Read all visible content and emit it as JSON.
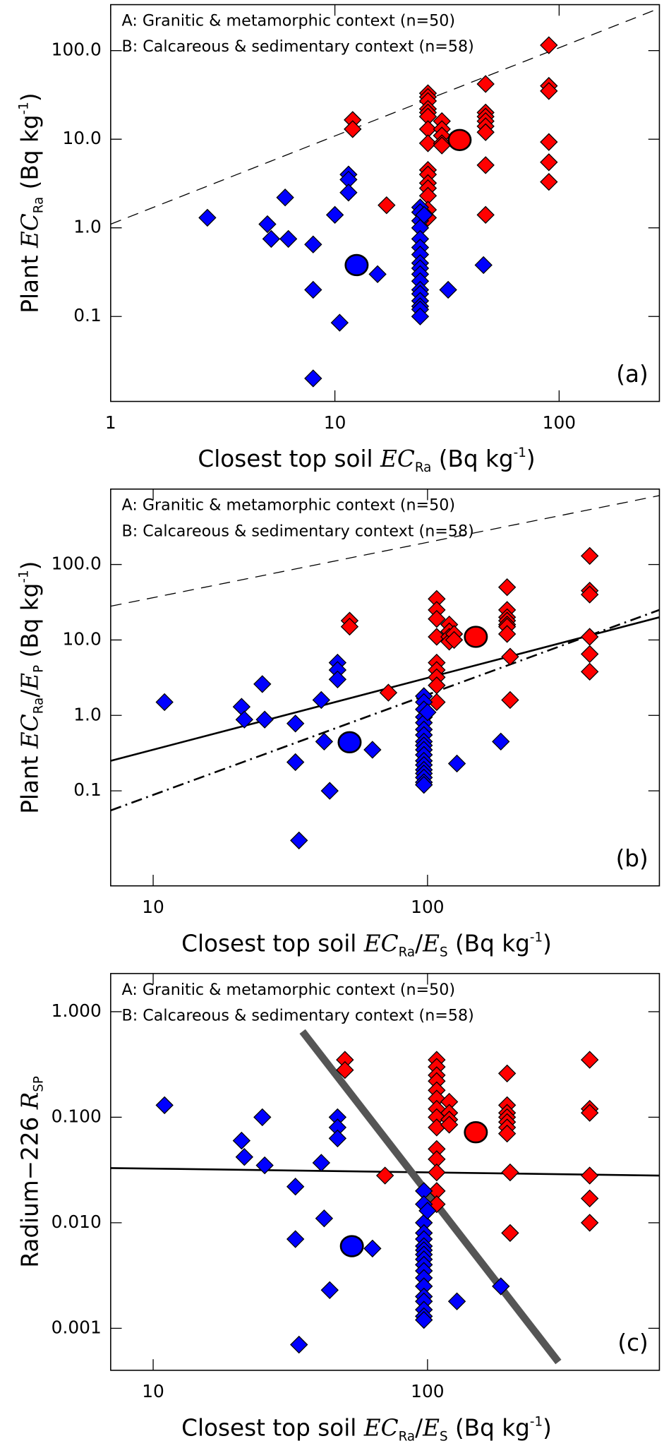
{
  "chart_data": [
    {
      "type": "scatter",
      "panel_label": "(a)",
      "xscale": "log",
      "yscale": "log",
      "xlim": [
        1,
        280
      ],
      "ylim": [
        0.011,
        330
      ],
      "xticks": [
        1,
        10,
        100
      ],
      "yticks": [
        0.1,
        {
          "value": 1,
          "label": "1.0"
        },
        {
          "value": 10,
          "label": "10.0"
        },
        {
          "value": 100,
          "label": "100.0"
        }
      ],
      "xlabel": [
        {
          "text": "Closest top soil ",
          "style": "normal"
        },
        {
          "text": "EC",
          "style": "italic"
        },
        {
          "text": "Ra",
          "style": "sub"
        },
        {
          "text": " (Bq kg",
          "style": "normal"
        },
        {
          "text": "-1",
          "style": "sup"
        },
        {
          "text": ")",
          "style": "normal"
        }
      ],
      "ylabel": [
        {
          "text": "Plant ",
          "style": "normal"
        },
        {
          "text": "EC",
          "style": "italic"
        },
        {
          "text": "Ra",
          "style": "sub"
        },
        {
          "text": " (Bq kg",
          "style": "normal"
        },
        {
          "text": "-1",
          "style": "sup"
        },
        {
          "text": ")",
          "style": "normal"
        }
      ],
      "series": [
        {
          "name": "A: Granitic & metamorphic context (n=50)",
          "color": "#ff0000",
          "x": [
            12,
            12,
            17,
            26,
            26,
            26,
            26,
            26,
            26,
            26,
            26,
            26,
            26,
            26,
            26,
            26,
            26,
            26,
            30,
            30,
            30,
            30,
            30,
            47,
            47,
            47,
            47,
            47,
            47,
            47,
            47,
            90,
            90,
            90,
            90,
            90,
            90
          ],
          "values": [
            16.5,
            13,
            1.8,
            33,
            30,
            27,
            22,
            20,
            18,
            13,
            9,
            4.5,
            4,
            3.2,
            2.8,
            2.3,
            1.6,
            1.3,
            16,
            13,
            11,
            9,
            8.5,
            42,
            20,
            18,
            16,
            14,
            12,
            5.1,
            1.4,
            115,
            40,
            35,
            9.3,
            5.5,
            3.3
          ]
        },
        {
          "name": "B: Calcareous & sedimentary context (n=58)",
          "color": "#0000ff",
          "x": [
            2.7,
            5,
            5.2,
            6,
            6.2,
            8,
            8,
            8,
            10,
            10.5,
            11.5,
            11.5,
            11.5,
            15.5,
            24,
            24,
            24,
            24,
            24,
            24,
            24,
            24,
            24,
            24,
            24,
            24,
            24,
            24,
            24,
            24,
            24,
            25,
            32,
            46
          ],
          "values": [
            1.3,
            1.1,
            0.75,
            2.2,
            0.75,
            0.65,
            0.2,
            0.02,
            1.4,
            0.085,
            4,
            3.5,
            2.5,
            0.3,
            1.7,
            1.5,
            1.2,
            1.0,
            0.75,
            0.6,
            0.5,
            0.4,
            0.35,
            0.3,
            0.25,
            0.2,
            0.18,
            0.15,
            0.13,
            0.12,
            0.1,
            1.4,
            0.2,
            0.38
          ]
        }
      ],
      "means": [
        {
          "x": 36,
          "y": 9.8,
          "color": "#ff0000"
        },
        {
          "x": 12.5,
          "y": 0.38,
          "color": "#0000ff"
        }
      ],
      "lines": [
        {
          "x": [
            1,
            280
          ],
          "values": [
            1.1,
            300
          ],
          "style": "dashed",
          "color": "#000000",
          "width": 1
        }
      ]
    },
    {
      "type": "scatter",
      "panel_label": "(b)",
      "xscale": "log",
      "yscale": "log",
      "xlim": [
        7,
        700
      ],
      "ylim": [
        0.0055,
        1000
      ],
      "xticks": [
        10,
        100
      ],
      "yticks": [
        0.1,
        {
          "value": 1,
          "label": "1.0"
        },
        {
          "value": 10,
          "label": "10.0"
        },
        {
          "value": 100,
          "label": "100.0"
        }
      ],
      "xlabel": [
        {
          "text": "Closest top soil ",
          "style": "normal"
        },
        {
          "text": "EC",
          "style": "italic"
        },
        {
          "text": "Ra",
          "style": "sub"
        },
        {
          "text": "/",
          "style": "normal"
        },
        {
          "text": "E",
          "style": "italic"
        },
        {
          "text": "S",
          "style": "sub"
        },
        {
          "text": " (Bq kg",
          "style": "normal"
        },
        {
          "text": "-1",
          "style": "sup"
        },
        {
          "text": ")",
          "style": "normal"
        }
      ],
      "ylabel": [
        {
          "text": "Plant ",
          "style": "normal"
        },
        {
          "text": "EC",
          "style": "italic"
        },
        {
          "text": "Ra",
          "style": "sub"
        },
        {
          "text": "/",
          "style": "normal"
        },
        {
          "text": "E",
          "style": "italic"
        },
        {
          "text": "P",
          "style": "sub"
        },
        {
          "text": " (Bq kg",
          "style": "normal"
        },
        {
          "text": "-1",
          "style": "sup"
        },
        {
          "text": ")",
          "style": "normal"
        }
      ],
      "series": [
        {
          "name": "A: Granitic & metamorphic context (n=50)",
          "color": "#ff0000",
          "x": [
            52,
            52,
            72,
            108,
            108,
            108,
            108,
            108,
            108,
            108,
            108,
            108,
            120,
            120,
            120,
            120,
            125,
            125,
            195,
            195,
            195,
            195,
            195,
            195,
            195,
            200,
            200,
            390,
            390,
            390,
            390,
            390,
            390
          ],
          "values": [
            18,
            15,
            2,
            35,
            25,
            19,
            11,
            5,
            4,
            3.2,
            2.5,
            1.5,
            16,
            13,
            11,
            9.5,
            12,
            10,
            50,
            25,
            20,
            18,
            16,
            15,
            12,
            6,
            1.6,
            130,
            45,
            40,
            11,
            6.5,
            3.8
          ]
        },
        {
          "name": "B: Calcareous & sedimentary context (n=58)",
          "color": "#0000ff",
          "x": [
            11,
            21,
            21.5,
            25,
            25.5,
            33,
            33,
            34,
            41,
            42,
            44,
            47,
            47,
            47,
            63,
            97,
            97,
            97,
            97,
            97,
            97,
            97,
            97,
            97,
            97,
            97,
            97,
            97,
            97,
            97,
            97,
            97,
            97,
            100,
            128,
            185
          ],
          "values": [
            1.5,
            1.3,
            0.88,
            2.6,
            0.88,
            0.78,
            0.24,
            0.022,
            1.6,
            0.45,
            0.1,
            5,
            4,
            3,
            0.35,
            1.8,
            1.5,
            1.2,
            0.95,
            0.8,
            0.65,
            0.55,
            0.45,
            0.4,
            0.35,
            0.3,
            0.25,
            0.22,
            0.19,
            0.17,
            0.15,
            0.13,
            0.12,
            1.1,
            0.23,
            0.45
          ]
        }
      ],
      "means": [
        {
          "x": 150,
          "y": 11,
          "color": "#ff0000"
        },
        {
          "x": 52,
          "y": 0.44,
          "color": "#0000ff"
        }
      ],
      "lines": [
        {
          "x": [
            7,
            700
          ],
          "values": [
            28,
            820
          ],
          "style": "dashed",
          "color": "#000000",
          "width": 1
        },
        {
          "x": [
            7,
            700
          ],
          "values": [
            0.25,
            20
          ],
          "style": "solid",
          "color": "#000000",
          "width": 2
        },
        {
          "x": [
            7,
            700
          ],
          "values": [
            0.055,
            25
          ],
          "style": "dashdot",
          "color": "#000000",
          "width": 2
        }
      ]
    },
    {
      "type": "scatter",
      "panel_label": "(c)",
      "xscale": "log",
      "yscale": "log",
      "xlim": [
        7,
        700
      ],
      "ylim": [
        0.0004,
        2.3
      ],
      "xticks": [
        10,
        100
      ],
      "yticks": [
        0.001,
        {
          "value": 0.01,
          "label": "0.010"
        },
        {
          "value": 0.1,
          "label": "0.100"
        },
        {
          "value": 1,
          "label": "1.000"
        }
      ],
      "xlabel": [
        {
          "text": "Closest top soil ",
          "style": "normal"
        },
        {
          "text": "EC",
          "style": "italic"
        },
        {
          "text": "Ra",
          "style": "sub"
        },
        {
          "text": "/",
          "style": "normal"
        },
        {
          "text": "E",
          "style": "italic"
        },
        {
          "text": "S",
          "style": "sub"
        },
        {
          "text": " (Bq kg",
          "style": "normal"
        },
        {
          "text": "-1",
          "style": "sup"
        },
        {
          "text": ")",
          "style": "normal"
        }
      ],
      "ylabel": [
        {
          "text": "Radium−226 ",
          "style": "normal"
        },
        {
          "text": "R",
          "style": "italic"
        },
        {
          "text": "SP",
          "style": "sub"
        }
      ],
      "series": [
        {
          "name": "A: Granitic & metamorphic context (n=50)",
          "color": "#ff0000",
          "x": [
            50,
            50,
            70,
            108,
            108,
            108,
            108,
            108,
            108,
            108,
            108,
            108,
            108,
            108,
            108,
            108,
            108,
            120,
            120,
            120,
            120,
            195,
            195,
            195,
            195,
            195,
            195,
            195,
            200,
            200,
            390,
            390,
            390,
            390,
            390,
            390
          ],
          "values": [
            0.35,
            0.28,
            0.028,
            0.35,
            0.3,
            0.25,
            0.22,
            0.18,
            0.15,
            0.12,
            0.1,
            0.08,
            0.05,
            0.04,
            0.03,
            0.02,
            0.015,
            0.14,
            0.11,
            0.095,
            0.085,
            0.26,
            0.13,
            0.11,
            0.1,
            0.09,
            0.08,
            0.07,
            0.03,
            0.008,
            0.35,
            0.12,
            0.11,
            0.028,
            0.017,
            0.01
          ]
        },
        {
          "name": "B: Calcareous & sedimentary context (n=58)",
          "color": "#0000ff",
          "x": [
            11,
            21,
            21.5,
            25,
            25.5,
            33,
            33,
            34,
            41,
            42,
            44,
            47,
            47,
            47,
            63,
            97,
            97,
            97,
            97,
            97,
            97,
            97,
            97,
            97,
            97,
            97,
            97,
            97,
            97,
            97,
            97,
            97,
            97,
            100,
            128,
            185
          ],
          "values": [
            0.13,
            0.06,
            0.042,
            0.1,
            0.035,
            0.022,
            0.007,
            0.0007,
            0.037,
            0.011,
            0.0023,
            0.1,
            0.08,
            0.063,
            0.0057,
            0.02,
            0.015,
            0.01,
            0.008,
            0.007,
            0.006,
            0.0055,
            0.005,
            0.0045,
            0.004,
            0.0035,
            0.003,
            0.0025,
            0.002,
            0.0018,
            0.0015,
            0.0013,
            0.0012,
            0.013,
            0.0018,
            0.0025
          ]
        }
      ],
      "means": [
        {
          "x": 150,
          "y": 0.072,
          "color": "#ff0000"
        },
        {
          "x": 53,
          "y": 0.006,
          "color": "#0000ff"
        }
      ],
      "lines": [
        {
          "x": [
            7,
            700
          ],
          "values": [
            0.033,
            0.028
          ],
          "style": "solid",
          "color": "#000000",
          "width": 2
        },
        {
          "x": [
            35,
            300
          ],
          "values": [
            0.65,
            0.00048
          ],
          "style": "solid",
          "color": "#555555",
          "width": 8
        }
      ]
    }
  ]
}
